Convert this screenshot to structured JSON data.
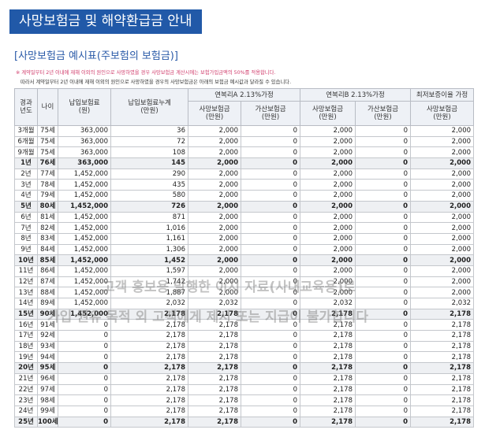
{
  "header": {
    "title": "사망보험금 및 해약환급금 안내",
    "subtitle": "[사망보험금 예시표(주보험의 보험금)]"
  },
  "notes": [
    "※ 계약일부터 2년 이내에 재해 이외의 원인으로 사망하였을 경우 사망보험금 계산시에는 보험가입금액의 50%를 적용합니다.",
    "따라서 계약일부터 2년 이내에 재해 이외의 원인으로 사망하였을 경우의 사망보험금은 아래의 보험금 예시값과 달라질 수 있습니다."
  ],
  "table": {
    "head": {
      "year": "경과\n년도",
      "age": "나이",
      "premium": "납입보험료\n(원)",
      "cumulative": "납입보험료누계\n(만원)",
      "groupA": "연복리A 2.13%가정",
      "groupB": "연복리B 2.13%가정",
      "groupC": "최저보증이율 가정",
      "death": "사망보험금\n(만원)",
      "extra": "가산보험금\n(만원)"
    },
    "rows": [
      [
        "3개월",
        "75세",
        "363,000",
        "36",
        "2,000",
        "0",
        "2,000",
        "0",
        "2,000"
      ],
      [
        "6개월",
        "75세",
        "363,000",
        "72",
        "2,000",
        "0",
        "2,000",
        "0",
        "2,000"
      ],
      [
        "9개월",
        "75세",
        "363,000",
        "108",
        "2,000",
        "0",
        "2,000",
        "0",
        "2,000"
      ],
      [
        "1년",
        "76세",
        "363,000",
        "145",
        "2,000",
        "0",
        "2,000",
        "0",
        "2,000"
      ],
      [
        "2년",
        "77세",
        "1,452,000",
        "290",
        "2,000",
        "0",
        "2,000",
        "0",
        "2,000"
      ],
      [
        "3년",
        "78세",
        "1,452,000",
        "435",
        "2,000",
        "0",
        "2,000",
        "0",
        "2,000"
      ],
      [
        "4년",
        "79세",
        "1,452,000",
        "580",
        "2,000",
        "0",
        "2,000",
        "0",
        "2,000"
      ],
      [
        "5년",
        "80세",
        "1,452,000",
        "726",
        "2,000",
        "0",
        "2,000",
        "0",
        "2,000"
      ],
      [
        "6년",
        "81세",
        "1,452,000",
        "871",
        "2,000",
        "0",
        "2,000",
        "0",
        "2,000"
      ],
      [
        "7년",
        "82세",
        "1,452,000",
        "1,016",
        "2,000",
        "0",
        "2,000",
        "0",
        "2,000"
      ],
      [
        "8년",
        "83세",
        "1,452,000",
        "1,161",
        "2,000",
        "0",
        "2,000",
        "0",
        "2,000"
      ],
      [
        "9년",
        "84세",
        "1,452,000",
        "1,306",
        "2,000",
        "0",
        "2,000",
        "0",
        "2,000"
      ],
      [
        "10년",
        "85세",
        "1,452,000",
        "1,452",
        "2,000",
        "0",
        "2,000",
        "0",
        "2,000"
      ],
      [
        "11년",
        "86세",
        "1,452,000",
        "1,597",
        "2,000",
        "0",
        "2,000",
        "0",
        "2,000"
      ],
      [
        "12년",
        "87세",
        "1,452,000",
        "1,742",
        "2,000",
        "0",
        "2,000",
        "0",
        "2,000"
      ],
      [
        "13년",
        "88세",
        "1,452,000",
        "1,887",
        "2,000",
        "0",
        "2,000",
        "0",
        "2,000"
      ],
      [
        "14년",
        "89세",
        "1,452,000",
        "2,032",
        "2,032",
        "0",
        "2,032",
        "0",
        "2,032"
      ],
      [
        "15년",
        "90세",
        "1,452,000",
        "2,178",
        "2,178",
        "0",
        "2,178",
        "0",
        "2,178"
      ],
      [
        "16년",
        "91세",
        "0",
        "2,178",
        "2,178",
        "0",
        "2,178",
        "0",
        "2,178"
      ],
      [
        "17년",
        "92세",
        "0",
        "2,178",
        "2,178",
        "0",
        "2,178",
        "0",
        "2,178"
      ],
      [
        "18년",
        "93세",
        "0",
        "2,178",
        "2,178",
        "0",
        "2,178",
        "0",
        "2,178"
      ],
      [
        "19년",
        "94세",
        "0",
        "2,178",
        "2,178",
        "0",
        "2,178",
        "0",
        "2,178"
      ],
      [
        "20년",
        "95세",
        "0",
        "2,178",
        "2,178",
        "0",
        "2,178",
        "0",
        "2,178"
      ],
      [
        "21년",
        "96세",
        "0",
        "2,178",
        "2,178",
        "0",
        "2,178",
        "0",
        "2,178"
      ],
      [
        "22년",
        "97세",
        "0",
        "2,178",
        "2,178",
        "0",
        "2,178",
        "0",
        "2,178"
      ],
      [
        "23년",
        "98세",
        "0",
        "2,178",
        "2,178",
        "0",
        "2,178",
        "0",
        "2,178"
      ],
      [
        "24년",
        "99세",
        "0",
        "2,178",
        "2,178",
        "0",
        "2,178",
        "0",
        "2,178"
      ],
      [
        "25년",
        "100세",
        "0",
        "2,178",
        "2,178",
        "0",
        "2,178",
        "0",
        "2,178"
      ]
    ]
  },
  "watermark": [
    "고객 홍보용 발행한 이시 자료(사내교육용)로",
    "가입 권유 목적 외 고객에게 제시 또는 지급이 불가합니다"
  ]
}
